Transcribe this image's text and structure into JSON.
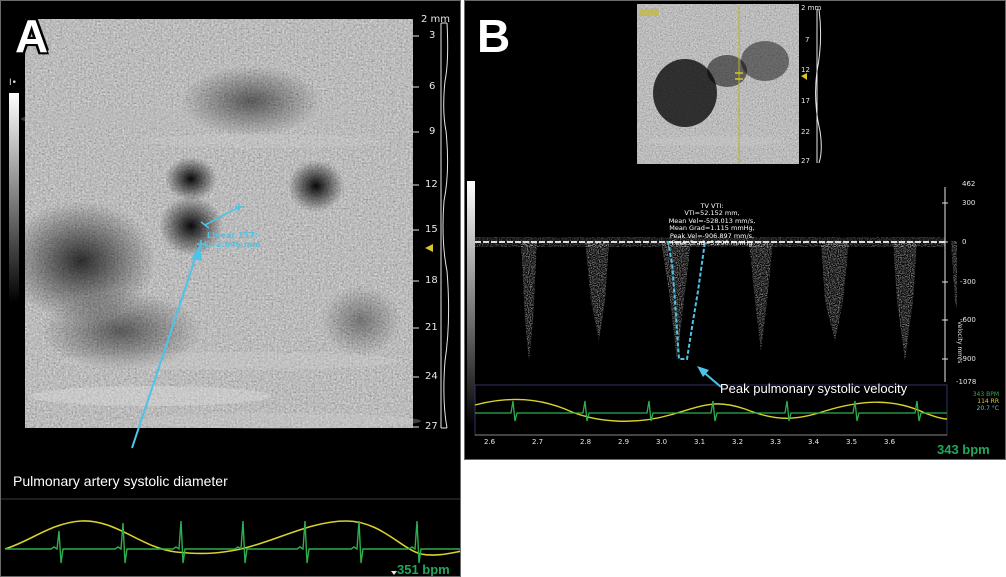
{
  "panel_a": {
    "letter": "A",
    "depth_unit_label": "2 mm",
    "depth_ticks": [
      "3",
      "6",
      "9",
      "12",
      "15",
      "18",
      "21",
      "24",
      "27"
    ],
    "measurement": {
      "name": "Linear 157:",
      "value": "L=2.646 mm"
    },
    "annotation": "Pulmonary artery systolic diameter",
    "heart_rate": "351 bpm"
  },
  "panel_b": {
    "letter": "B",
    "depth_unit_label": "2 mm",
    "depth_ticks": [
      "7",
      "12",
      "17",
      "22",
      "27"
    ],
    "velocity_ticks": [
      "462",
      "300",
      "0",
      "-300",
      "-600",
      "-900",
      "-1078"
    ],
    "velocity_axis_label": "Velocity mm/s",
    "time_ticks": [
      "2.6",
      "2.7",
      "2.8",
      "2.9",
      "3.0",
      "3.1",
      "3.2",
      "3.3",
      "3.4",
      "3.5",
      "3.6"
    ],
    "vti_lines": [
      "TV VTI:",
      "VTI=52.152 mm,",
      "Mean Vel=-528.013 mm/s,",
      "Mean Grad=1.115 mmHg,",
      "Peak Vel=-906.897 mm/s,",
      "Peak Grad=3.290 mmHg"
    ],
    "annotation": "Peak pulmonary systolic velocity",
    "ecg_readout": [
      "343 BPM",
      "114 RR",
      "20.7 °C"
    ],
    "heart_rate": "343 bpm"
  },
  "colors": {
    "ecg_green": "#2fae4e",
    "resp_yellow": "#d8d22a",
    "measure_cyan": "#4fc3e6",
    "bpm_green": "#1fa85a"
  }
}
